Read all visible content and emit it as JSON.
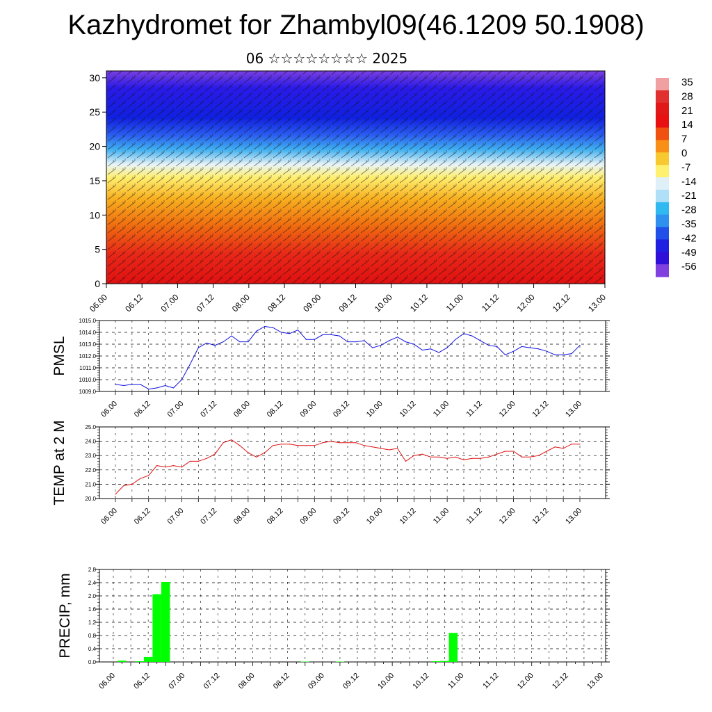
{
  "title": "Kazhydromet for Zhambyl09(46.1209 50.1908)",
  "subtitle": "06 ☆☆☆☆☆☆☆☆ 2025",
  "colors": {
    "pmsl": "#1010e0",
    "temp": "#e01010",
    "precip": "#00ff00"
  },
  "chart_data": [
    {
      "type": "heatmap",
      "title": "",
      "ylim": [
        0,
        31
      ],
      "y_ticks": [
        "0",
        "5",
        "10",
        "15",
        "20",
        "25",
        "30"
      ],
      "x_ticks": [
        "06.00",
        "06.12",
        "07.00",
        "07.12",
        "08.00",
        "08.12",
        "09.00",
        "09.12",
        "10.00",
        "10.12",
        "11.00",
        "11.12",
        "12.00",
        "12.12",
        "13.00"
      ],
      "colorbar_labels": [
        "35",
        "28",
        "21",
        "14",
        "7",
        "0",
        "-7",
        "-14",
        "-21",
        "-28",
        "-35",
        "-42",
        "-49",
        "-56"
      ],
      "note_overlay": "wind barbs"
    },
    {
      "type": "line",
      "ylabel": "PMSL",
      "ylim": [
        1009.0,
        1015.0
      ],
      "y_ticks": [
        "1009.0",
        "1010.0",
        "1011.0",
        "1012.0",
        "1013.0",
        "1014.0",
        "1015.0"
      ],
      "x_ticks": [
        "06.00",
        "06.12",
        "07.00",
        "07.12",
        "08.00",
        "08.12",
        "09.00",
        "09.12",
        "10.00",
        "10.12",
        "11.00",
        "11.12",
        "12.00",
        "12.12",
        "13.00"
      ],
      "x": [
        0,
        3,
        6,
        9,
        12,
        15,
        18,
        21,
        24,
        27,
        30,
        33,
        36,
        39,
        42,
        45,
        48,
        51,
        54,
        57,
        60,
        63,
        66,
        69,
        72,
        75,
        78,
        81,
        84,
        87,
        90,
        93,
        96,
        99,
        102,
        105,
        108,
        111,
        114,
        117,
        120,
        123,
        126,
        129,
        132,
        135,
        138,
        141,
        144,
        147,
        150,
        153,
        156,
        159,
        162,
        165,
        168
      ],
      "values": [
        1009.6,
        1009.5,
        1009.6,
        1009.6,
        1009.2,
        1009.3,
        1009.5,
        1009.3,
        1010.0,
        1011.3,
        1012.7,
        1013.1,
        1012.9,
        1013.2,
        1013.7,
        1013.2,
        1013.2,
        1014.1,
        1014.5,
        1014.4,
        1014.0,
        1013.9,
        1014.2,
        1013.4,
        1013.4,
        1013.8,
        1013.8,
        1013.7,
        1013.2,
        1013.2,
        1013.3,
        1012.7,
        1012.9,
        1013.3,
        1013.6,
        1013.2,
        1013.0,
        1012.5,
        1012.6,
        1012.3,
        1012.7,
        1013.4,
        1013.9,
        1013.7,
        1013.3,
        1012.9,
        1012.8,
        1012.1,
        1012.4,
        1012.8,
        1012.7,
        1012.6,
        1012.4,
        1012.1,
        1012.1,
        1012.2,
        1012.9
      ]
    },
    {
      "type": "line",
      "ylabel": "TEMP at 2 M",
      "ylim": [
        20.0,
        25.0
      ],
      "y_ticks": [
        "20.0",
        "21.0",
        "22.0",
        "23.0",
        "24.0",
        "25.0"
      ],
      "x_ticks": [
        "06.00",
        "06.12",
        "07.00",
        "07.12",
        "08.00",
        "08.12",
        "09.00",
        "09.12",
        "10.00",
        "10.12",
        "11.00",
        "11.12",
        "12.00",
        "12.12",
        "13.00"
      ],
      "x": [
        0,
        3,
        6,
        9,
        12,
        15,
        18,
        21,
        24,
        27,
        30,
        33,
        36,
        39,
        42,
        45,
        48,
        51,
        54,
        57,
        60,
        63,
        66,
        69,
        72,
        75,
        78,
        81,
        84,
        87,
        90,
        93,
        96,
        99,
        102,
        105,
        108,
        111,
        114,
        117,
        120,
        123,
        126,
        129,
        132,
        135,
        138,
        141,
        144,
        147,
        150,
        153,
        156,
        159,
        162,
        165,
        168
      ],
      "values": [
        20.3,
        20.9,
        21.0,
        21.4,
        21.6,
        22.3,
        22.2,
        22.3,
        22.2,
        22.6,
        22.6,
        22.8,
        23.1,
        23.9,
        24.1,
        23.7,
        23.2,
        22.9,
        23.2,
        23.7,
        23.8,
        23.8,
        23.7,
        23.7,
        23.7,
        23.9,
        24.0,
        23.9,
        23.9,
        23.9,
        23.7,
        23.6,
        23.5,
        23.4,
        23.5,
        22.6,
        23.0,
        23.1,
        22.9,
        22.9,
        22.8,
        22.9,
        22.7,
        22.8,
        22.8,
        22.9,
        23.1,
        23.3,
        23.3,
        22.9,
        22.9,
        23.0,
        23.3,
        23.6,
        23.5,
        23.8,
        23.8
      ]
    },
    {
      "type": "bar",
      "ylabel": "PRECIP, mm",
      "ylim": [
        0.0,
        2.8
      ],
      "y_ticks": [
        "0.0",
        "0.4",
        "0.8",
        "1.2",
        "1.6",
        "2.0",
        "2.4",
        "2.8"
      ],
      "x_ticks": [
        "06.00",
        "06.12",
        "07.00",
        "07.12",
        "08.00",
        "08.12",
        "09.00",
        "09.12",
        "10.00",
        "10.12",
        "11.00",
        "11.12",
        "12.00",
        "12.12",
        "13.00"
      ],
      "x": [
        3,
        9,
        12,
        15,
        18,
        66,
        78,
        111,
        114,
        117
      ],
      "values": [
        0.04,
        0.02,
        0.15,
        2.05,
        2.42,
        0.01,
        0.01,
        0.02,
        0.03,
        0.88
      ]
    }
  ]
}
